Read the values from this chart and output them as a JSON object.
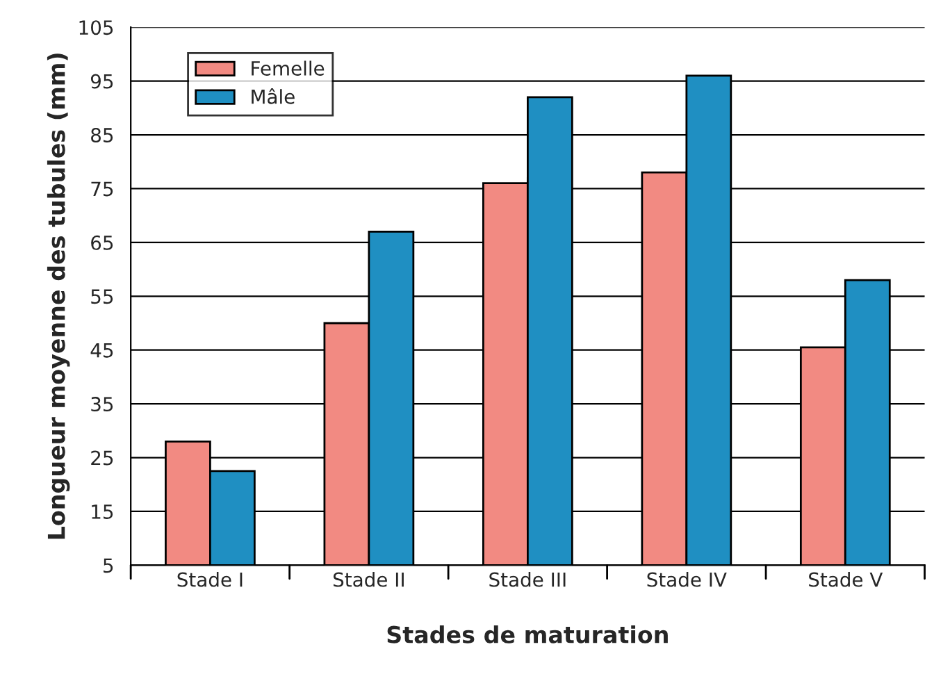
{
  "chart_data": {
    "type": "bar",
    "xlabel": "Stades de maturation",
    "ylabel": "Longueur moyenne des tubules (mm)",
    "categories": [
      "Stade I",
      "Stade II",
      "Stade III",
      "Stade IV",
      "Stade V"
    ],
    "series": [
      {
        "name": "Femelle",
        "color": "#f28a82",
        "values": [
          28,
          50,
          76,
          78,
          45.5
        ]
      },
      {
        "name": "Mâle",
        "color": "#1f8fc2",
        "values": [
          22.5,
          67,
          92,
          96,
          58
        ]
      }
    ],
    "ylim": [
      5,
      105
    ],
    "yticks": [
      5,
      15,
      25,
      35,
      45,
      55,
      65,
      75,
      85,
      95,
      105
    ],
    "grid": "y",
    "legend": "top left"
  }
}
